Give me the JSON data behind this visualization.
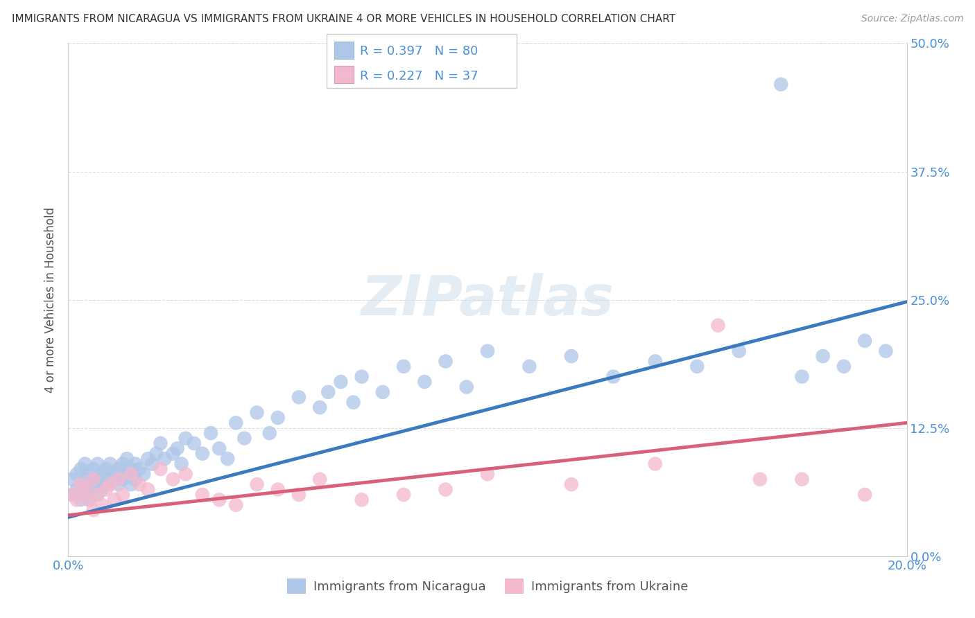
{
  "title": "IMMIGRANTS FROM NICARAGUA VS IMMIGRANTS FROM UKRAINE 4 OR MORE VEHICLES IN HOUSEHOLD CORRELATION CHART",
  "source": "Source: ZipAtlas.com",
  "ylabel": "4 or more Vehicles in Household",
  "xlim": [
    0.0,
    0.2
  ],
  "ylim": [
    0.0,
    0.5
  ],
  "xticks": [
    0.0,
    0.2
  ],
  "yticks": [
    0.0,
    0.125,
    0.25,
    0.375,
    0.5
  ],
  "xtick_labels": [
    "0.0%",
    "20.0%"
  ],
  "ytick_labels": [
    "0.0%",
    "12.5%",
    "25.0%",
    "37.5%",
    "50.0%"
  ],
  "nicaragua_color": "#aec6e8",
  "ukraine_color": "#f4b8ce",
  "nicaragua_line_color": "#3a7abf",
  "ukraine_line_color": "#d9607a",
  "nicaragua_R": 0.397,
  "nicaragua_N": 80,
  "ukraine_R": 0.227,
  "ukraine_N": 37,
  "tick_label_color": "#4a90d9",
  "ylabel_color": "#555555",
  "title_color": "#333333",
  "source_color": "#999999",
  "grid_color": "#dddddd",
  "watermark_color": "#d8e8f0",
  "legend_border_color": "#cccccc",
  "legend_text_color": "#4a90d9",
  "nic_x": [
    0.001,
    0.001,
    0.002,
    0.002,
    0.003,
    0.003,
    0.003,
    0.004,
    0.004,
    0.004,
    0.005,
    0.005,
    0.005,
    0.006,
    0.006,
    0.007,
    0.007,
    0.007,
    0.008,
    0.008,
    0.009,
    0.009,
    0.01,
    0.01,
    0.011,
    0.012,
    0.012,
    0.013,
    0.013,
    0.014,
    0.014,
    0.015,
    0.015,
    0.016,
    0.016,
    0.017,
    0.018,
    0.019,
    0.02,
    0.021,
    0.022,
    0.023,
    0.025,
    0.026,
    0.027,
    0.028,
    0.03,
    0.032,
    0.034,
    0.036,
    0.038,
    0.04,
    0.042,
    0.045,
    0.048,
    0.05,
    0.055,
    0.06,
    0.062,
    0.065,
    0.068,
    0.07,
    0.075,
    0.08,
    0.085,
    0.09,
    0.095,
    0.1,
    0.11,
    0.12,
    0.13,
    0.14,
    0.15,
    0.16,
    0.17,
    0.175,
    0.18,
    0.185,
    0.19,
    0.195
  ],
  "nic_y": [
    0.06,
    0.075,
    0.065,
    0.08,
    0.055,
    0.07,
    0.085,
    0.06,
    0.075,
    0.09,
    0.065,
    0.08,
    0.055,
    0.07,
    0.085,
    0.06,
    0.075,
    0.09,
    0.065,
    0.08,
    0.07,
    0.085,
    0.075,
    0.09,
    0.08,
    0.07,
    0.085,
    0.075,
    0.09,
    0.08,
    0.095,
    0.085,
    0.07,
    0.09,
    0.075,
    0.085,
    0.08,
    0.095,
    0.09,
    0.1,
    0.11,
    0.095,
    0.1,
    0.105,
    0.09,
    0.115,
    0.11,
    0.1,
    0.12,
    0.105,
    0.095,
    0.13,
    0.115,
    0.14,
    0.12,
    0.135,
    0.155,
    0.145,
    0.16,
    0.17,
    0.15,
    0.175,
    0.16,
    0.185,
    0.17,
    0.19,
    0.165,
    0.2,
    0.185,
    0.195,
    0.175,
    0.19,
    0.185,
    0.2,
    0.46,
    0.175,
    0.195,
    0.185,
    0.21,
    0.2
  ],
  "ukr_x": [
    0.001,
    0.002,
    0.003,
    0.004,
    0.005,
    0.006,
    0.006,
    0.007,
    0.008,
    0.009,
    0.01,
    0.011,
    0.012,
    0.013,
    0.015,
    0.017,
    0.019,
    0.022,
    0.025,
    0.028,
    0.032,
    0.036,
    0.04,
    0.045,
    0.05,
    0.055,
    0.06,
    0.07,
    0.08,
    0.09,
    0.1,
    0.12,
    0.14,
    0.155,
    0.165,
    0.175,
    0.19
  ],
  "ukr_y": [
    0.06,
    0.055,
    0.07,
    0.065,
    0.055,
    0.075,
    0.045,
    0.06,
    0.05,
    0.065,
    0.07,
    0.055,
    0.075,
    0.06,
    0.08,
    0.07,
    0.065,
    0.085,
    0.075,
    0.08,
    0.06,
    0.055,
    0.05,
    0.07,
    0.065,
    0.06,
    0.075,
    0.055,
    0.06,
    0.065,
    0.08,
    0.07,
    0.09,
    0.225,
    0.075,
    0.075,
    0.06
  ]
}
